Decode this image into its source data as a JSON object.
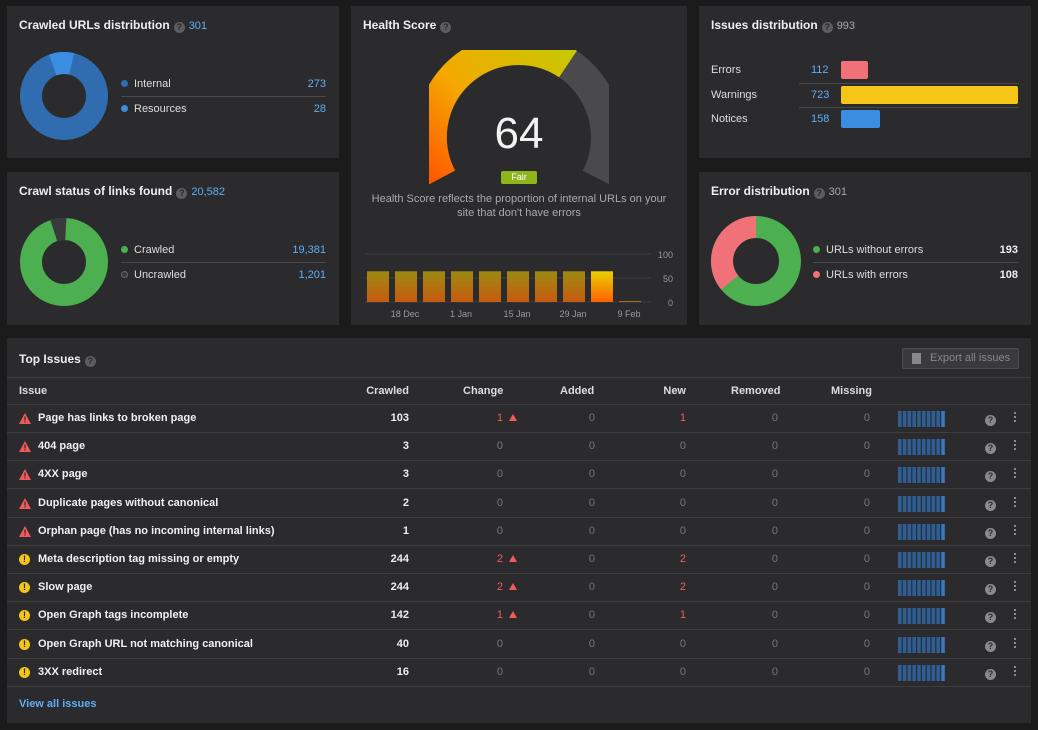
{
  "crawled_urls": {
    "title": "Crawled URLs distribution",
    "count": "301",
    "items": [
      {
        "label": "Internal",
        "value": "273",
        "color": "#2f6cb0"
      },
      {
        "label": "Resources",
        "value": "28",
        "color": "#3a8de0"
      }
    ]
  },
  "crawl_status": {
    "title": "Crawl status of links found",
    "count": "20,582",
    "items": [
      {
        "label": "Crawled",
        "value": "19,381",
        "color": "#4caf50"
      },
      {
        "label": "Uncrawled",
        "value": "1,201",
        "color": "#3a3a3c"
      }
    ]
  },
  "health": {
    "title": "Health Score",
    "score": "64",
    "rating": "Fair",
    "description": "Health Score reflects the proportion of internal URLs on your site that don't have errors",
    "history": {
      "x_labels": [
        "18 Dec",
        "1 Jan",
        "15 Jan",
        "29 Jan",
        "9 Feb"
      ],
      "y_labels": [
        "100",
        "50",
        "0"
      ],
      "values": [
        64,
        64,
        64,
        64,
        64,
        64,
        64,
        64,
        64,
        2
      ]
    }
  },
  "issues_dist": {
    "title": "Issues distribution",
    "count": "993",
    "items": [
      {
        "label": "Errors",
        "value": "112",
        "color": "#f07178",
        "fraction": 0.155
      },
      {
        "label": "Warnings",
        "value": "723",
        "color": "#f5c518",
        "fraction": 1.0
      },
      {
        "label": "Notices",
        "value": "158",
        "color": "#3a8de0",
        "fraction": 0.218
      }
    ]
  },
  "error_dist": {
    "title": "Error distribution",
    "count": "301",
    "items": [
      {
        "label": "URLs without errors",
        "value": "193",
        "color": "#4caf50"
      },
      {
        "label": "URLs with errors",
        "value": "108",
        "color": "#f07178"
      }
    ]
  },
  "top_issues": {
    "title": "Top Issues",
    "export_label": "Export all issues",
    "view_all": "View all issues",
    "columns": [
      "Issue",
      "Crawled",
      "Change",
      "Added",
      "New",
      "Removed",
      "Missing"
    ],
    "rows": [
      {
        "type": "error",
        "name": "Page has links to broken page",
        "crawled": "103",
        "change": "1",
        "up": true,
        "added": "0",
        "new": "1",
        "removed": "0",
        "missing": "0"
      },
      {
        "type": "error",
        "name": "404 page",
        "crawled": "3",
        "change": "0",
        "up": false,
        "added": "0",
        "new": "0",
        "removed": "0",
        "missing": "0"
      },
      {
        "type": "error",
        "name": "4XX page",
        "crawled": "3",
        "change": "0",
        "up": false,
        "added": "0",
        "new": "0",
        "removed": "0",
        "missing": "0"
      },
      {
        "type": "error",
        "name": "Duplicate pages without canonical",
        "crawled": "2",
        "change": "0",
        "up": false,
        "added": "0",
        "new": "0",
        "removed": "0",
        "missing": "0"
      },
      {
        "type": "error",
        "name": "Orphan page (has no incoming internal links)",
        "crawled": "1",
        "change": "0",
        "up": false,
        "added": "0",
        "new": "0",
        "removed": "0",
        "missing": "0"
      },
      {
        "type": "warning",
        "name": "Meta description tag missing or empty",
        "crawled": "244",
        "change": "2",
        "up": true,
        "added": "0",
        "new": "2",
        "removed": "0",
        "missing": "0"
      },
      {
        "type": "warning",
        "name": "Slow page",
        "crawled": "244",
        "change": "2",
        "up": true,
        "added": "0",
        "new": "2",
        "removed": "0",
        "missing": "0"
      },
      {
        "type": "warning",
        "name": "Open Graph tags incomplete",
        "crawled": "142",
        "change": "1",
        "up": true,
        "added": "0",
        "new": "1",
        "removed": "0",
        "missing": "0"
      },
      {
        "type": "warning",
        "name": "Open Graph URL not matching canonical",
        "crawled": "40",
        "change": "0",
        "up": false,
        "added": "0",
        "new": "0",
        "removed": "0",
        "missing": "0"
      },
      {
        "type": "warning",
        "name": "3XX redirect",
        "crawled": "16",
        "change": "0",
        "up": false,
        "added": "0",
        "new": "0",
        "removed": "0",
        "missing": "0"
      }
    ]
  }
}
